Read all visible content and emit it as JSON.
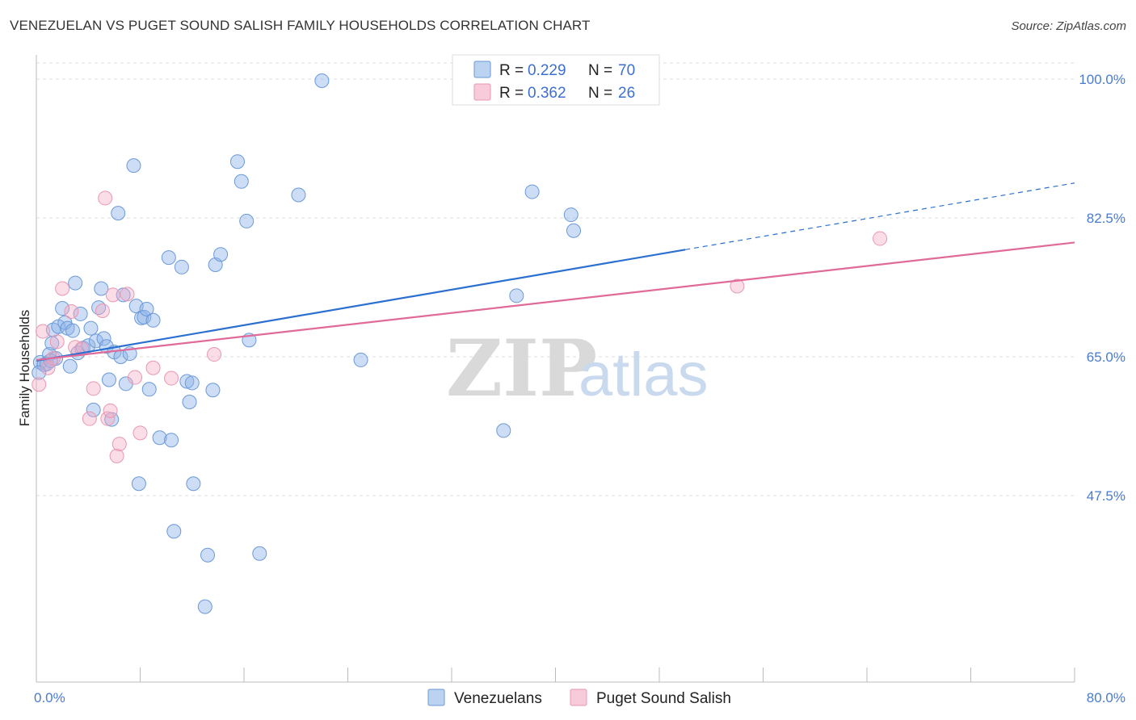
{
  "title": "VENEZUELAN VS PUGET SOUND SALISH FAMILY HOUSEHOLDS CORRELATION CHART",
  "source": "Source: ZipAtlas.com",
  "watermark": {
    "zip": "ZIP",
    "atlas": "atlas"
  },
  "chart_data": {
    "type": "scatter",
    "ylabel": "Family Households",
    "xlabel": "",
    "xlim": [
      0,
      80
    ],
    "ylim": [
      30,
      102
    ],
    "x_tick_labels": [
      {
        "value": 0,
        "label": "0.0%"
      },
      {
        "value": 80,
        "label": "80.0%"
      }
    ],
    "y_tick_labels": [
      {
        "value": 100,
        "label": "100.0%"
      },
      {
        "value": 82.5,
        "label": "82.5%"
      },
      {
        "value": 65,
        "label": "65.0%"
      },
      {
        "value": 47.5,
        "label": "47.5%"
      }
    ],
    "grid": true,
    "legend": [
      {
        "name": "Venezuelans",
        "color": "#8db4e8",
        "line_color": "#2b6fd0",
        "r_label": "R =",
        "r_value": "0.229",
        "n_label": "N =",
        "n_value": "70"
      },
      {
        "name": "Puget Sound Salish",
        "color": "#f4a9c2",
        "line_color": "#e06a98",
        "r_label": "R =",
        "r_value": "0.362",
        "n_label": "N =",
        "n_value": "26"
      }
    ],
    "series": [
      {
        "name": "Venezuelans",
        "trend": {
          "x0": 0,
          "y0": 64.5,
          "x1": 50,
          "y1": 78.5,
          "dash_x1": 80,
          "dash_y1": 86.9
        },
        "points": [
          [
            0.3,
            64.3
          ],
          [
            0.6,
            64.0
          ],
          [
            0.8,
            64.1
          ],
          [
            1.0,
            65.3
          ],
          [
            1.2,
            66.7
          ],
          [
            1.3,
            68.4
          ],
          [
            1.5,
            64.8
          ],
          [
            1.7,
            68.8
          ],
          [
            2.0,
            71.1
          ],
          [
            2.2,
            69.3
          ],
          [
            2.4,
            68.6
          ],
          [
            2.6,
            63.8
          ],
          [
            2.8,
            68.3
          ],
          [
            3.0,
            74.3
          ],
          [
            3.2,
            65.5
          ],
          [
            3.4,
            70.4
          ],
          [
            3.6,
            66.1
          ],
          [
            4.0,
            66.4
          ],
          [
            4.2,
            68.6
          ],
          [
            4.4,
            58.3
          ],
          [
            4.6,
            67.0
          ],
          [
            4.8,
            71.2
          ],
          [
            5.0,
            73.6
          ],
          [
            5.2,
            67.3
          ],
          [
            5.4,
            66.3
          ],
          [
            5.6,
            62.1
          ],
          [
            5.8,
            57.1
          ],
          [
            6.0,
            65.6
          ],
          [
            6.3,
            83.1
          ],
          [
            6.5,
            65.0
          ],
          [
            6.7,
            72.8
          ],
          [
            6.9,
            61.6
          ],
          [
            7.2,
            65.4
          ],
          [
            7.5,
            89.1
          ],
          [
            7.7,
            71.4
          ],
          [
            7.9,
            49.0
          ],
          [
            8.1,
            69.9
          ],
          [
            8.3,
            70.0
          ],
          [
            8.5,
            71.0
          ],
          [
            8.7,
            60.9
          ],
          [
            9.0,
            69.6
          ],
          [
            9.5,
            54.8
          ],
          [
            10.2,
            77.5
          ],
          [
            10.4,
            54.5
          ],
          [
            10.6,
            43.0
          ],
          [
            11.2,
            76.3
          ],
          [
            11.6,
            61.9
          ],
          [
            11.8,
            59.3
          ],
          [
            12.0,
            61.7
          ],
          [
            12.1,
            49.0
          ],
          [
            13.0,
            33.5
          ],
          [
            13.2,
            40.0
          ],
          [
            13.6,
            60.8
          ],
          [
            13.8,
            76.6
          ],
          [
            14.2,
            77.9
          ],
          [
            15.5,
            89.6
          ],
          [
            15.8,
            87.1
          ],
          [
            16.2,
            82.1
          ],
          [
            16.4,
            67.1
          ],
          [
            17.2,
            40.2
          ],
          [
            20.2,
            85.4
          ],
          [
            22.0,
            99.8
          ],
          [
            25.0,
            64.6
          ],
          [
            36.0,
            55.7
          ],
          [
            37.0,
            72.7
          ],
          [
            38.2,
            85.8
          ],
          [
            41.2,
            82.9
          ],
          [
            41.4,
            80.9
          ],
          [
            0.2,
            63.0
          ],
          [
            1.1,
            64.5
          ]
        ]
      },
      {
        "name": "Puget Sound Salish",
        "trend": {
          "x0": 0,
          "y0": 64.6,
          "x1": 80,
          "y1": 79.4
        },
        "points": [
          [
            0.2,
            61.5
          ],
          [
            0.5,
            68.2
          ],
          [
            0.9,
            63.6
          ],
          [
            1.3,
            64.8
          ],
          [
            1.6,
            66.9
          ],
          [
            2.0,
            73.6
          ],
          [
            2.7,
            70.7
          ],
          [
            3.0,
            66.2
          ],
          [
            3.5,
            66.0
          ],
          [
            4.1,
            57.2
          ],
          [
            4.4,
            61.0
          ],
          [
            5.1,
            70.8
          ],
          [
            5.3,
            85.0
          ],
          [
            5.5,
            57.2
          ],
          [
            5.7,
            58.2
          ],
          [
            5.9,
            72.8
          ],
          [
            6.2,
            52.5
          ],
          [
            6.4,
            54.0
          ],
          [
            7.0,
            72.9
          ],
          [
            7.6,
            62.4
          ],
          [
            8.0,
            55.4
          ],
          [
            9.0,
            63.6
          ],
          [
            10.4,
            62.3
          ],
          [
            13.7,
            65.3
          ],
          [
            54.0,
            73.9
          ],
          [
            65.0,
            79.9
          ]
        ]
      }
    ]
  }
}
